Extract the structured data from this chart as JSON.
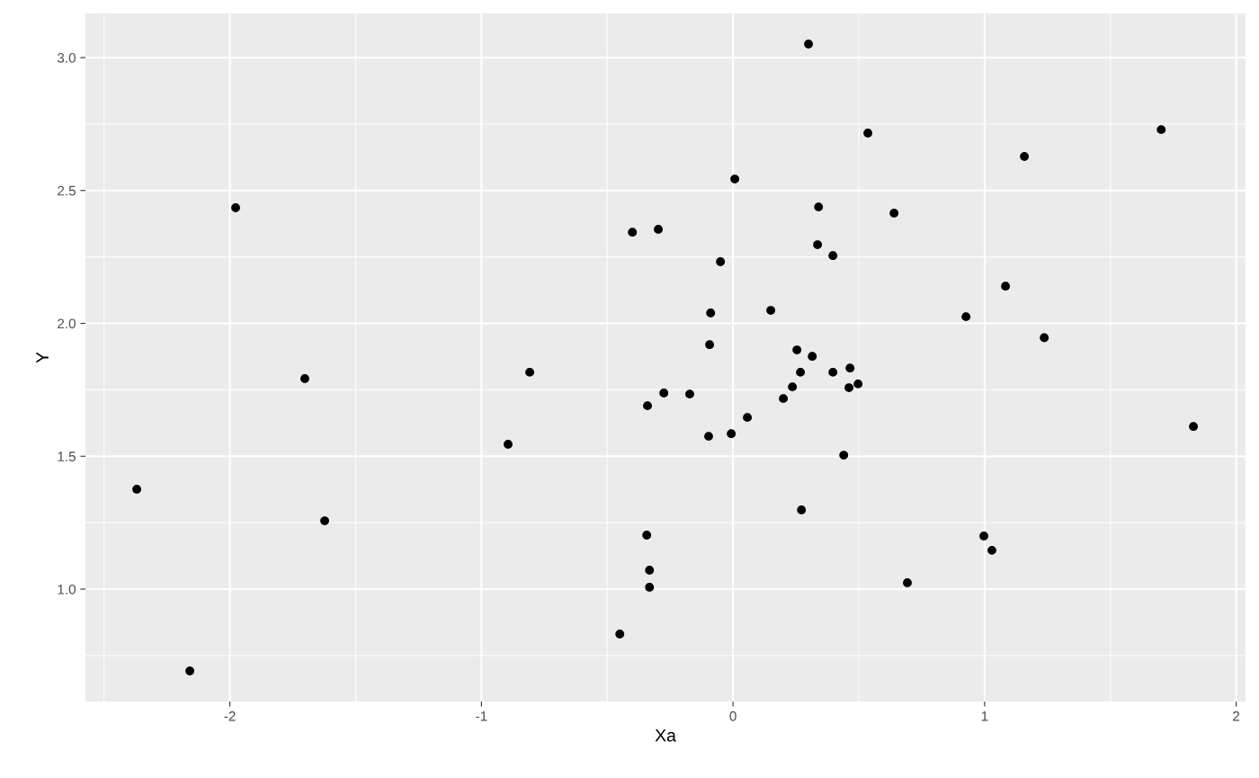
{
  "chart_data": {
    "type": "scatter",
    "xlabel": "Xa",
    "ylabel": "Y",
    "x": [
      -2.37,
      -2.159,
      -1.977,
      -1.702,
      -1.623,
      -0.894,
      -0.808,
      -0.45,
      -0.4,
      -0.343,
      -0.34,
      -0.332,
      -0.332,
      -0.297,
      -0.275,
      -0.172,
      -0.097,
      -0.093,
      -0.089,
      -0.05,
      -0.007,
      0.007,
      0.057,
      0.15,
      0.2,
      0.236,
      0.254,
      0.268,
      0.272,
      0.3,
      0.315,
      0.336,
      0.34,
      0.397,
      0.397,
      0.44,
      0.461,
      0.465,
      0.497,
      0.536,
      0.64,
      0.693,
      0.926,
      0.997,
      1.029,
      1.083,
      1.158,
      1.237,
      1.702,
      1.83
    ],
    "values": [
      1.376,
      0.692,
      2.435,
      1.792,
      1.257,
      1.545,
      1.816,
      0.831,
      2.343,
      1.203,
      1.69,
      1.071,
      1.007,
      2.354,
      1.738,
      1.734,
      1.575,
      1.92,
      2.039,
      2.232,
      1.585,
      2.543,
      1.646,
      2.049,
      1.717,
      1.761,
      1.9,
      1.816,
      1.298,
      3.051,
      1.876,
      2.296,
      2.438,
      2.255,
      1.816,
      1.504,
      1.758,
      1.832,
      1.772,
      2.716,
      2.415,
      1.024,
      2.025,
      1.2,
      1.146,
      2.14,
      2.628,
      1.946,
      2.729,
      1.612
    ],
    "color": "#000000",
    "marker": "circle",
    "xlim": [
      -2.574,
      2.037
    ],
    "ylim": [
      0.577,
      3.166
    ],
    "xticks": [
      -2,
      -1,
      0,
      1,
      2
    ],
    "yticks": [
      {
        "value": 1.0,
        "label": "1.0"
      },
      {
        "value": 1.5,
        "label": "1.5"
      },
      {
        "value": 2.0,
        "label": "2.0"
      },
      {
        "value": 2.5,
        "label": "2.5"
      },
      {
        "value": 3.0,
        "label": "3.0"
      }
    ],
    "grid": true
  }
}
